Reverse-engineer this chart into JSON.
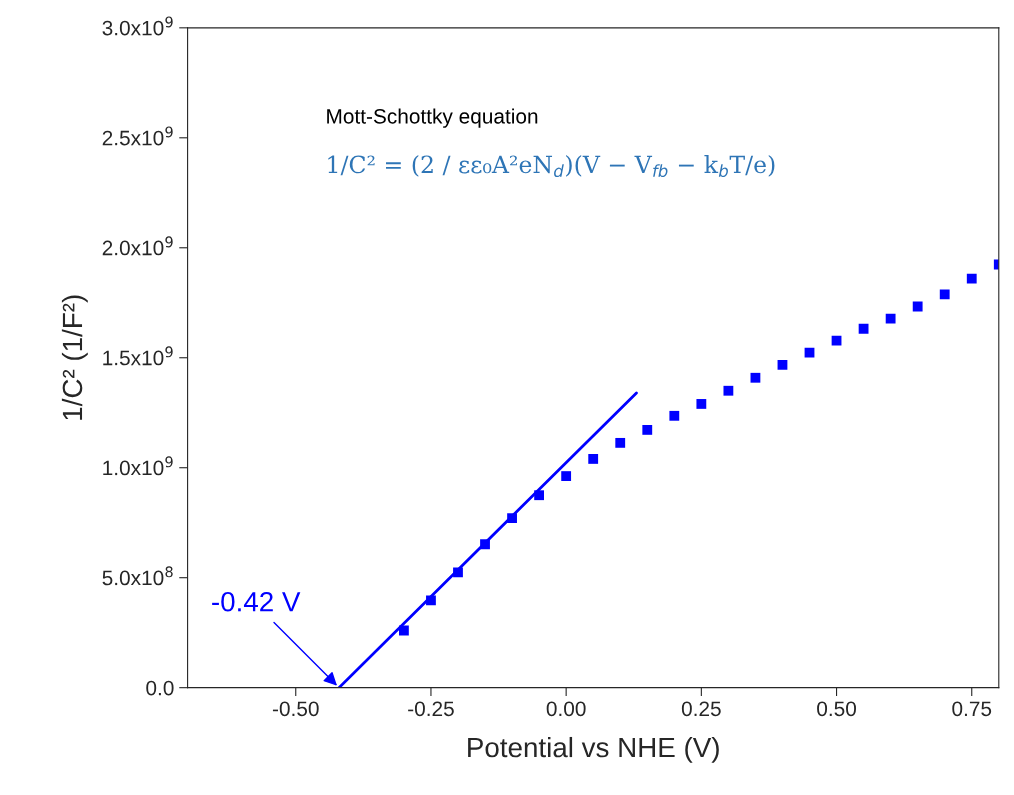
{
  "chart_data": {
    "type": "scatter",
    "xlabel": "Potential vs NHE (V)",
    "ylabel": "1/C² (1/F²)",
    "xlim": [
      -0.7,
      0.8
    ],
    "ylim": [
      0,
      3000000000.0
    ],
    "xticks": [
      {
        "value": -0.5,
        "label": "-0.50"
      },
      -0.25,
      {
        "value": 0,
        "label": "0.00"
      },
      0.25,
      {
        "value": 0.5,
        "label": "0.50"
      },
      0.75
    ],
    "yticks": [
      {
        "value": 0,
        "label": "0.0"
      },
      {
        "value": 500000000.0,
        "label": "5.0x10$^{8}$"
      },
      {
        "value": 1000000000.0,
        "label": "1.0x10$^{9}$"
      },
      {
        "value": 1500000000.0,
        "label": "1.5x10$^{9}$"
      },
      {
        "value": 2000000000.0,
        "label": "2.0x10$^{9}$"
      },
      {
        "value": 2500000000.0,
        "label": "2.5x10$^{9}$"
      },
      {
        "value": 3000000000.0,
        "label": "3.0x10$^{9}$"
      }
    ],
    "grid": false,
    "legend": false,
    "series": [
      {
        "marker": "square",
        "color": "#0000ff",
        "x": [
          -0.3,
          -0.25,
          -0.2,
          -0.15,
          -0.1,
          -0.05,
          0.0,
          0.05,
          0.1,
          0.15,
          0.2,
          0.25,
          0.3,
          0.35,
          0.4,
          0.45,
          0.5,
          0.55,
          0.6,
          0.65,
          0.7,
          0.75,
          0.8
        ],
        "values": [
          260000000.0,
          397000000.0,
          524000000.0,
          652000000.0,
          771000000.0,
          875000000.0,
          962000000.0,
          1040000000.0,
          1113000000.0,
          1172000000.0,
          1236000000.0,
          1290000000.0,
          1350000000.0,
          1409000000.0,
          1468000000.0,
          1523000000.0,
          1578000000.0,
          1632000000.0,
          1678000000.0,
          1733000000.0,
          1788000000.0,
          1860000000.0,
          1924000000.0
        ]
      },
      {
        "type": "line",
        "marker": "none",
        "color": "#0000ff",
        "x": [
          -0.42,
          0.13
        ],
        "values": [
          0,
          1340000000.0
        ]
      }
    ],
    "annotations": [
      "Mott-Schottky equation",
      "1/C² = (2 / εε₀A²eN$_{d}$)(V − V$_{fb}$ − k$_{b}$T/e)",
      {
        "text": "-0.42 V",
        "x": -0.42,
        "y": 0
      }
    ]
  }
}
